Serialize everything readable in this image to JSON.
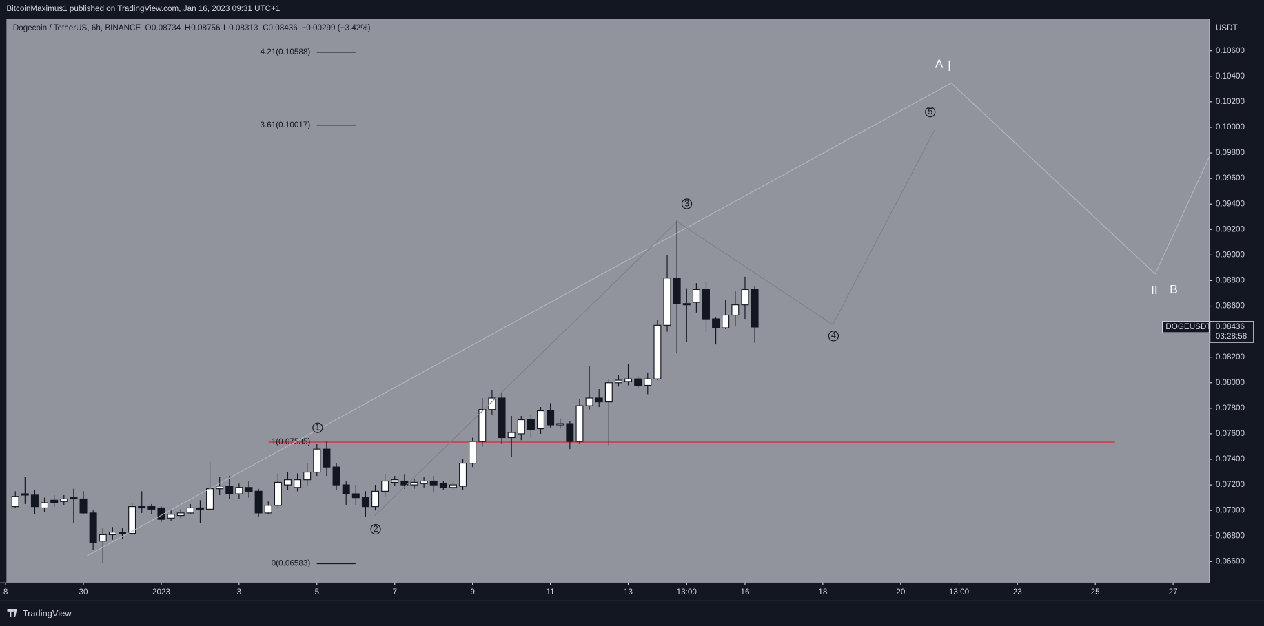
{
  "chart_data": {
    "type": "candlestick",
    "published": "BitcoinMaximus1 published on TradingView.com, Jan 16, 2023 09:31 UTC+1",
    "symbol_title": "Dogecoin / TetherUS, 6h, BINANCE",
    "ohlc_header": {
      "o_label": "O",
      "o": 0.08734,
      "h_label": "H",
      "h": 0.08756,
      "l_label": "L",
      "l": 0.08313,
      "c_label": "C",
      "c": 0.08436,
      "change": "−0.00299 (−3.42%)"
    },
    "axis_unit": "USDT",
    "price_tag": {
      "symbol": "DOGEUSDT",
      "price": 0.08436,
      "countdown": "03:28:58"
    },
    "footer": "TradingView",
    "up_color": "#ffffff",
    "down_color": "#131722",
    "background": "#91949c",
    "open": [
      0.0703,
      0.0713,
      0.0712,
      0.0702,
      0.0708,
      0.0707,
      0.071,
      0.0709,
      0.0698,
      0.0676,
      0.0681,
      0.0683,
      0.0682,
      0.0703,
      0.0703,
      0.0702,
      0.0694,
      0.0696,
      0.0698,
      0.0702,
      0.0701,
      0.0717,
      0.0719,
      0.0713,
      0.0718,
      0.0715,
      0.0698,
      0.0704,
      0.072,
      0.0718,
      0.0724,
      0.073,
      0.0748,
      0.0734,
      0.072,
      0.0713,
      0.071,
      0.0703,
      0.0715,
      0.0722,
      0.0723,
      0.072,
      0.0721,
      0.0723,
      0.0721,
      0.0718,
      0.0719,
      0.0737,
      0.0754,
      0.0779,
      0.0788,
      0.0757,
      0.076,
      0.0771,
      0.0764,
      0.0778,
      0.0767,
      0.0768,
      0.0754,
      0.0782,
      0.0788,
      0.0785,
      0.08,
      0.0801,
      0.0803,
      0.0798,
      0.0803,
      0.0845,
      0.0882,
      0.0862,
      0.0863,
      0.0873,
      0.085,
      0.0843,
      0.0853,
      0.0861,
      0.08734
    ],
    "high": [
      0.0715,
      0.0726,
      0.0716,
      0.071,
      0.0712,
      0.0712,
      0.0717,
      0.0715,
      0.07,
      0.0686,
      0.0687,
      0.0686,
      0.0706,
      0.0715,
      0.0705,
      0.0703,
      0.07,
      0.0701,
      0.0705,
      0.0708,
      0.0738,
      0.0726,
      0.0727,
      0.0721,
      0.0723,
      0.0717,
      0.0707,
      0.0729,
      0.073,
      0.0729,
      0.0737,
      0.0752,
      0.0754,
      0.0737,
      0.0723,
      0.072,
      0.0715,
      0.072,
      0.0728,
      0.0727,
      0.0728,
      0.0725,
      0.0726,
      0.0727,
      0.0723,
      0.0722,
      0.074,
      0.0757,
      0.0788,
      0.0794,
      0.0792,
      0.0774,
      0.0774,
      0.0775,
      0.0781,
      0.0784,
      0.0772,
      0.077,
      0.0787,
      0.0813,
      0.0795,
      0.0803,
      0.0806,
      0.0815,
      0.0805,
      0.0808,
      0.0849,
      0.09,
      0.0927,
      0.0874,
      0.0878,
      0.0879,
      0.0851,
      0.0865,
      0.0872,
      0.0883,
      0.08756
    ],
    "low": [
      0.0702,
      0.0705,
      0.0697,
      0.0699,
      0.0703,
      0.0704,
      0.069,
      0.0697,
      0.0669,
      0.0659,
      0.0677,
      0.0678,
      0.0681,
      0.0698,
      0.0697,
      0.0691,
      0.0692,
      0.0694,
      0.0697,
      0.069,
      0.0701,
      0.0712,
      0.0709,
      0.0709,
      0.071,
      0.0695,
      0.0697,
      0.0702,
      0.0716,
      0.0715,
      0.0719,
      0.0727,
      0.0727,
      0.0716,
      0.0704,
      0.0704,
      0.0695,
      0.07,
      0.0711,
      0.0719,
      0.0717,
      0.0717,
      0.0718,
      0.0714,
      0.0716,
      0.0716,
      0.0716,
      0.0734,
      0.075,
      0.0775,
      0.0752,
      0.0742,
      0.0755,
      0.0757,
      0.076,
      0.0765,
      0.0764,
      0.0748,
      0.0752,
      0.0779,
      0.0781,
      0.0751,
      0.0797,
      0.0798,
      0.0796,
      0.0791,
      0.0802,
      0.084,
      0.0823,
      0.0832,
      0.0855,
      0.084,
      0.083,
      0.0842,
      0.0844,
      0.085,
      0.08313
    ],
    "close": [
      0.0711,
      0.0712,
      0.0703,
      0.0706,
      0.0706,
      0.0709,
      0.0709,
      0.0698,
      0.0675,
      0.0681,
      0.0683,
      0.0682,
      0.0703,
      0.0702,
      0.0701,
      0.0693,
      0.0697,
      0.0698,
      0.0702,
      0.0701,
      0.0717,
      0.0719,
      0.0713,
      0.0718,
      0.0715,
      0.0698,
      0.0704,
      0.0722,
      0.0724,
      0.0724,
      0.073,
      0.0748,
      0.0734,
      0.072,
      0.0713,
      0.071,
      0.0703,
      0.0715,
      0.0723,
      0.0724,
      0.072,
      0.0722,
      0.0723,
      0.072,
      0.0718,
      0.072,
      0.0737,
      0.0754,
      0.0779,
      0.0788,
      0.0757,
      0.0761,
      0.0771,
      0.0763,
      0.0778,
      0.0767,
      0.0768,
      0.0754,
      0.0782,
      0.0788,
      0.0785,
      0.08,
      0.0802,
      0.0803,
      0.0798,
      0.0803,
      0.0845,
      0.0882,
      0.0862,
      0.0861,
      0.0873,
      0.085,
      0.0843,
      0.0853,
      0.0861,
      0.0873,
      0.08436
    ],
    "ylim": [
      0.06436,
      0.10852
    ],
    "yticks": [
      {
        "value": 0.066,
        "label": "0.06600"
      },
      {
        "value": 0.068,
        "label": "0.06800"
      },
      {
        "value": 0.07,
        "label": "0.07000"
      },
      {
        "value": 0.072,
        "label": "0.07200"
      },
      {
        "value": 0.074,
        "label": "0.07400"
      },
      {
        "value": 0.076,
        "label": "0.07600"
      },
      {
        "value": 0.078,
        "label": "0.07800"
      },
      {
        "value": 0.08,
        "label": "0.08000"
      },
      {
        "value": 0.082,
        "label": "0.08200"
      },
      {
        "value": 0.084,
        "label": "0.08400"
      },
      {
        "value": 0.086,
        "label": "0.08600"
      },
      {
        "value": 0.088,
        "label": "0.08800"
      },
      {
        "value": 0.09,
        "label": "0.09000"
      },
      {
        "value": 0.092,
        "label": "0.09200"
      },
      {
        "value": 0.094,
        "label": "0.09400"
      },
      {
        "value": 0.096,
        "label": "0.09600"
      },
      {
        "value": 0.098,
        "label": "0.09800"
      },
      {
        "value": 0.1,
        "label": "0.10000"
      },
      {
        "value": 0.102,
        "label": "0.10200"
      },
      {
        "value": 0.104,
        "label": "0.10400"
      },
      {
        "value": 0.106,
        "label": "0.10600"
      }
    ],
    "xlim": [
      -0.91,
      122.71
    ],
    "xticks": [
      {
        "value": -1,
        "label": "8"
      },
      {
        "value": 7,
        "label": "30"
      },
      {
        "value": 15,
        "label": "2023"
      },
      {
        "value": 23,
        "label": "3"
      },
      {
        "value": 31,
        "label": "5"
      },
      {
        "value": 39,
        "label": "7"
      },
      {
        "value": 47,
        "label": "9"
      },
      {
        "value": 55,
        "label": "11"
      },
      {
        "value": 63,
        "label": "13"
      },
      {
        "value": 69,
        "label": "13:00"
      },
      {
        "value": 75,
        "label": "16"
      },
      {
        "value": 83,
        "label": "18"
      },
      {
        "value": 91,
        "label": "20"
      },
      {
        "value": 97,
        "label": "13:00"
      },
      {
        "value": 103,
        "label": "23"
      },
      {
        "value": 111,
        "label": "25"
      },
      {
        "value": 119,
        "label": "27"
      }
    ],
    "fib_levels": [
      {
        "label": "4.21(0.10588)",
        "value": 0.10588
      },
      {
        "label": "3.61(0.10017)",
        "value": 0.10017
      },
      {
        "label": "1(0.07535)",
        "value": 0.07535,
        "color": "#e0262b"
      },
      {
        "label": "0(0.06583)",
        "value": 0.06583
      }
    ],
    "wave_labels": [
      "1",
      "2",
      "3",
      "4",
      "5",
      "A",
      "I",
      "II",
      "B"
    ]
  }
}
